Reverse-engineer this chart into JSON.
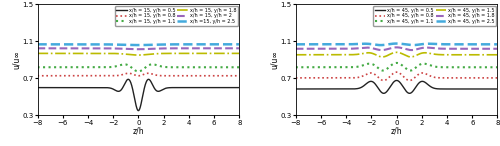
{
  "xlim": [
    -8,
    8
  ],
  "ylim": [
    0.3,
    1.5
  ],
  "yticks": [
    0.3,
    0.7,
    1.1,
    1.5
  ],
  "xticks": [
    -8,
    -6,
    -4,
    -2,
    0,
    2,
    4,
    6,
    8
  ],
  "xlabel": "z/h",
  "ylabel": "u/u∞",
  "legend_left": [
    {
      "label": "x/h = 15, y/h = 0.5",
      "color": "#222222",
      "ls": "-",
      "lw": 1.0
    },
    {
      "label": "x/h = 15, y/h = 0.8",
      "color": "#cc4444",
      "ls": ":",
      "lw": 1.2
    },
    {
      "label": "x/h = 15, y/h = 1.1",
      "color": "#44aa44",
      "ls": ":",
      "lw": 1.5
    },
    {
      "label": "x/h = 15, y/h = 1.8",
      "color": "#bbbb00",
      "ls": "-.",
      "lw": 1.2
    },
    {
      "label": "x/h = 15, y/h = 2",
      "color": "#9966bb",
      "ls": "--",
      "lw": 1.5
    },
    {
      "label": "x/h =15, y/h = 2.5",
      "color": "#44aadd",
      "ls": "--",
      "lw": 1.8
    }
  ],
  "legend_right": [
    {
      "label": "x/h = 45, y/h = 0.5",
      "color": "#222222",
      "ls": "-",
      "lw": 1.0
    },
    {
      "label": "x/h = 45, y/h = 0.8",
      "color": "#cc4444",
      "ls": ":",
      "lw": 1.2
    },
    {
      "label": "x/h = 45, y/h = 1.1",
      "color": "#44aa44",
      "ls": ":",
      "lw": 1.5
    },
    {
      "label": "x/h = 45, y/h = 1.5",
      "color": "#bbbb00",
      "ls": "-.",
      "lw": 1.2
    },
    {
      "label": "x/h = 45, y/h = 1.8",
      "color": "#9966bb",
      "ls": "--",
      "lw": 1.5
    },
    {
      "label": "x/h = 45, y/h = 2.5",
      "color": "#44aadd",
      "ls": "--",
      "lw": 1.8
    }
  ]
}
